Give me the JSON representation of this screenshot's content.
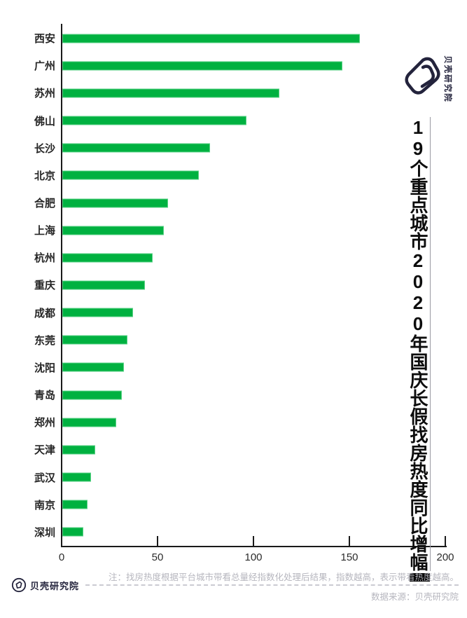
{
  "branding": {
    "logo_text_top": "贝壳研究院",
    "logo_text_bottom": "贝壳研究院"
  },
  "chart_data": {
    "type": "bar",
    "orientation": "horizontal",
    "title": "19个重点城市2020年国庆长假找房热度同比增幅",
    "categories": [
      "西安",
      "广州",
      "苏州",
      "佛山",
      "长沙",
      "北京",
      "合肥",
      "上海",
      "杭州",
      "重庆",
      "成都",
      "东莞",
      "沈阳",
      "青岛",
      "郑州",
      "天津",
      "武汉",
      "南京",
      "深圳"
    ],
    "values": [
      155,
      146,
      113,
      96,
      77,
      71,
      55,
      53,
      47,
      43,
      37,
      34,
      32,
      31,
      28,
      17,
      15,
      13,
      11
    ],
    "x_ticks": [
      0,
      50,
      100,
      150,
      200
    ],
    "xlim": [
      0,
      200
    ],
    "xlabel": "",
    "ylabel": "",
    "grid": false,
    "legend": false,
    "bar_color": "#00b140"
  },
  "footer": {
    "note": "注：找房热度根据平台城市带看总量经指数化处理后结果，指数越高，表示带看热度越高。",
    "source": "数据来源：贝壳研究院"
  },
  "colors": {
    "bar": "#00b140",
    "axis": "#1a1a1a",
    "label": "#262626",
    "note": "#b6b6be",
    "logo": "#23233c"
  }
}
